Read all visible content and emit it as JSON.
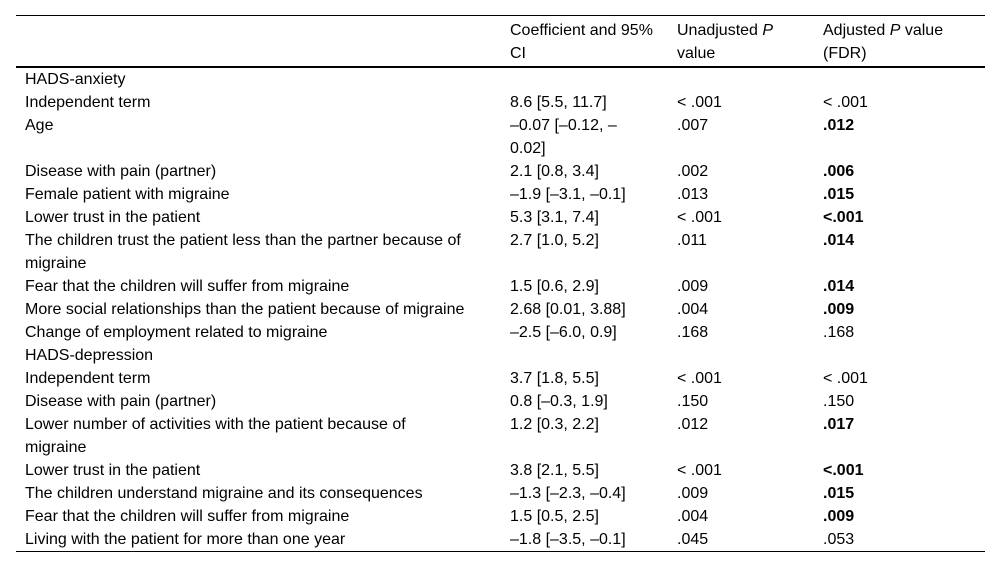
{
  "page": {
    "background_color": "#ffffff",
    "text_color": "#000000",
    "rule_color": "#000000"
  },
  "table": {
    "columns": [
      {
        "name": "row-label",
        "segments": []
      },
      {
        "name": "coefficient-ci",
        "segments": [
          {
            "text": "Coefficient and 95% CI",
            "italic": false
          }
        ]
      },
      {
        "name": "unadjusted-p",
        "segments": [
          {
            "text": "Unadjusted ",
            "italic": false
          },
          {
            "text": "P",
            "italic": true
          },
          {
            "text": " value",
            "italic": false
          }
        ]
      },
      {
        "name": "adjusted-p",
        "segments": [
          {
            "text": "Adjusted ",
            "italic": false
          },
          {
            "text": "P",
            "italic": true
          },
          {
            "text": " value (FDR)",
            "italic": false
          }
        ]
      }
    ],
    "rows": [
      {
        "label": "HADS-anxiety",
        "section": true,
        "coefficient_ci": "",
        "unadjusted_p": "",
        "adjusted_p": "",
        "adjusted_bold": false
      },
      {
        "label": "Independent term",
        "section": false,
        "coefficient_ci": "8.6 [5.5, 11.7]",
        "unadjusted_p": "< .001",
        "adjusted_p": "< .001",
        "adjusted_bold": false
      },
      {
        "label": "Age",
        "section": false,
        "coefficient_ci": "–0.07 [–0.12, –0.02]",
        "unadjusted_p": ".007",
        "adjusted_p": ".012",
        "adjusted_bold": true
      },
      {
        "label": "Disease with pain (partner)",
        "section": false,
        "coefficient_ci": "2.1 [0.8, 3.4]",
        "unadjusted_p": ".002",
        "adjusted_p": ".006",
        "adjusted_bold": true
      },
      {
        "label": "Female patient with migraine",
        "section": false,
        "coefficient_ci": "–1.9 [–3.1, –0.1]",
        "unadjusted_p": ".013",
        "adjusted_p": ".015",
        "adjusted_bold": true
      },
      {
        "label": "Lower trust in the patient",
        "section": false,
        "coefficient_ci": "5.3 [3.1, 7.4]",
        "unadjusted_p": "< .001",
        "adjusted_p": "<.001",
        "adjusted_bold": true
      },
      {
        "label": "The children trust the patient less than the partner because of migraine",
        "section": false,
        "coefficient_ci": "2.7 [1.0, 5.2]",
        "unadjusted_p": ".011",
        "adjusted_p": ".014",
        "adjusted_bold": true
      },
      {
        "label": "Fear that the children will suffer from migraine",
        "section": false,
        "coefficient_ci": "1.5 [0.6, 2.9]",
        "unadjusted_p": ".009",
        "adjusted_p": ".014",
        "adjusted_bold": true
      },
      {
        "label": "More social relationships than the patient because of migraine",
        "section": false,
        "coefficient_ci": "2.68 [0.01, 3.88]",
        "unadjusted_p": ".004",
        "adjusted_p": ".009",
        "adjusted_bold": true
      },
      {
        "label": "Change of employment related to migraine",
        "section": false,
        "coefficient_ci": "–2.5 [–6.0, 0.9]",
        "unadjusted_p": ".168",
        "adjusted_p": ".168",
        "adjusted_bold": false
      },
      {
        "label": "HADS-depression",
        "section": true,
        "coefficient_ci": "",
        "unadjusted_p": "",
        "adjusted_p": "",
        "adjusted_bold": false
      },
      {
        "label": "Independent term",
        "section": false,
        "coefficient_ci": "3.7 [1.8, 5.5]",
        "unadjusted_p": "< .001",
        "adjusted_p": "< .001",
        "adjusted_bold": false
      },
      {
        "label": "Disease with pain (partner)",
        "section": false,
        "coefficient_ci": "0.8 [–0.3, 1.9]",
        "unadjusted_p": ".150",
        "adjusted_p": ".150",
        "adjusted_bold": false
      },
      {
        "label": "Lower number of activities with the patient because of migraine",
        "section": false,
        "coefficient_ci": "1.2 [0.3, 2.2]",
        "unadjusted_p": ".012",
        "adjusted_p": ".017",
        "adjusted_bold": true
      },
      {
        "label": "Lower trust in the patient",
        "section": false,
        "coefficient_ci": "3.8 [2.1, 5.5]",
        "unadjusted_p": "< .001",
        "adjusted_p": "<.001",
        "adjusted_bold": true
      },
      {
        "label": "The children understand migraine and its consequences",
        "section": false,
        "coefficient_ci": "–1.3 [–2.3, –0.4]",
        "unadjusted_p": ".009",
        "adjusted_p": ".015",
        "adjusted_bold": true
      },
      {
        "label": "Fear that the children will suffer from migraine",
        "section": false,
        "coefficient_ci": "1.5 [0.5, 2.5]",
        "unadjusted_p": ".004",
        "adjusted_p": ".009",
        "adjusted_bold": true
      },
      {
        "label": "Living with the patient for more than one year",
        "section": false,
        "coefficient_ci": "–1.8 [–3.5, –0.1]",
        "unadjusted_p": ".045",
        "adjusted_p": ".053",
        "adjusted_bold": false
      }
    ]
  }
}
